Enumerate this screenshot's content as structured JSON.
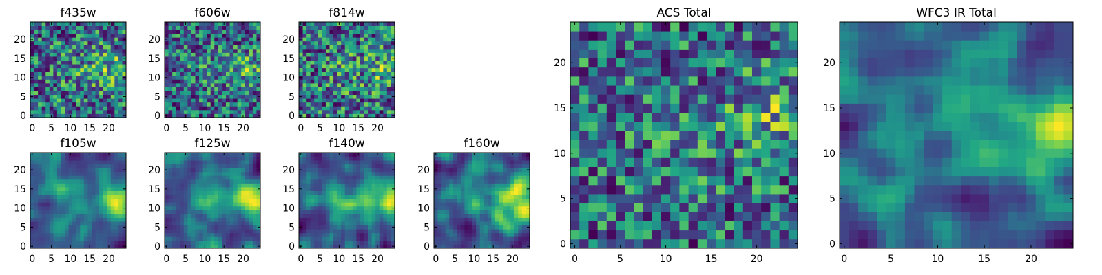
{
  "figure": {
    "background": "#ffffff"
  },
  "chart_data": [
    {
      "id": "f435w",
      "type": "heatmap",
      "title": "f435w",
      "seed": 11,
      "style": "noisy",
      "blob": [
        20,
        13
      ],
      "xlim": [
        -0.5,
        24.5
      ],
      "ylim": [
        -0.5,
        24.5
      ],
      "xticks": [
        0,
        5,
        10,
        15,
        20
      ],
      "xtick_labels": [
        "0",
        "5",
        "10",
        "15",
        "20"
      ],
      "yticks": [
        0,
        5,
        10,
        15,
        20
      ],
      "ytick_labels": [
        "0",
        "5",
        "10",
        "15",
        "20"
      ]
    },
    {
      "id": "f606w",
      "type": "heatmap",
      "title": "f606w",
      "seed": 23,
      "style": "noisy",
      "blob": [
        22,
        12
      ],
      "xlim": [
        -0.5,
        24.5
      ],
      "ylim": [
        -0.5,
        24.5
      ],
      "xticks": [
        0,
        5,
        10,
        15,
        20
      ],
      "xtick_labels": [
        "0",
        "5",
        "10",
        "15",
        "20"
      ],
      "yticks": [
        0,
        5,
        10,
        15,
        20
      ],
      "ytick_labels": [
        "0",
        "5",
        "10",
        "15",
        "20"
      ]
    },
    {
      "id": "f814w",
      "type": "heatmap",
      "title": "f814w",
      "seed": 37,
      "style": "noisy",
      "blob": [
        23,
        12
      ],
      "xlim": [
        -0.5,
        24.5
      ],
      "ylim": [
        -0.5,
        24.5
      ],
      "xticks": [
        0,
        5,
        10,
        15,
        20
      ],
      "xtick_labels": [
        "0",
        "5",
        "10",
        "15",
        "20"
      ],
      "yticks": [
        0,
        5,
        10,
        15,
        20
      ],
      "ytick_labels": [
        "0",
        "5",
        "10",
        "15",
        "20"
      ]
    },
    {
      "id": "f105w",
      "type": "heatmap",
      "title": "f105w",
      "seed": 41,
      "style": "smooth",
      "blob": [
        22,
        12
      ],
      "xlim": [
        -0.5,
        24.5
      ],
      "ylim": [
        -0.5,
        24.5
      ],
      "xticks": [
        0,
        5,
        10,
        15,
        20
      ],
      "xtick_labels": [
        "0",
        "5",
        "10",
        "15",
        "20"
      ],
      "yticks": [
        0,
        5,
        10,
        15,
        20
      ],
      "ytick_labels": [
        "0",
        "5",
        "10",
        "15",
        "20"
      ]
    },
    {
      "id": "f125w",
      "type": "heatmap",
      "title": "f125w",
      "seed": 53,
      "style": "smooth",
      "blob": [
        22,
        12
      ],
      "xlim": [
        -0.5,
        24.5
      ],
      "ylim": [
        -0.5,
        24.5
      ],
      "xticks": [
        0,
        5,
        10,
        15,
        20
      ],
      "xtick_labels": [
        "0",
        "5",
        "10",
        "15",
        "20"
      ],
      "yticks": [
        0,
        5,
        10,
        15,
        20
      ],
      "ytick_labels": [
        "0",
        "5",
        "10",
        "15",
        "20"
      ]
    },
    {
      "id": "f140w",
      "type": "heatmap",
      "title": "f140w",
      "seed": 67,
      "style": "smooth",
      "blob": [
        22,
        12
      ],
      "xlim": [
        -0.5,
        24.5
      ],
      "ylim": [
        -0.5,
        24.5
      ],
      "xticks": [
        0,
        5,
        10,
        15,
        20
      ],
      "xtick_labels": [
        "0",
        "5",
        "10",
        "15",
        "20"
      ],
      "yticks": [
        0,
        5,
        10,
        15,
        20
      ],
      "ytick_labels": [
        "0",
        "5",
        "10",
        "15",
        "20"
      ]
    },
    {
      "id": "f160w",
      "type": "heatmap",
      "title": "f160w",
      "seed": 79,
      "style": "smooth",
      "blob": [
        23,
        12
      ],
      "xlim": [
        -0.5,
        24.5
      ],
      "ylim": [
        -0.5,
        24.5
      ],
      "xticks": [
        0,
        5,
        10,
        15,
        20
      ],
      "xtick_labels": [
        "0",
        "5",
        "10",
        "15",
        "20"
      ],
      "yticks": [
        0,
        5,
        10,
        15,
        20
      ],
      "ytick_labels": [
        "0",
        "5",
        "10",
        "15",
        "20"
      ]
    },
    {
      "id": "acs_total",
      "type": "heatmap",
      "title": "ACS Total",
      "seed": 97,
      "style": "noisy",
      "blob": [
        22,
        14
      ],
      "xlim": [
        -0.5,
        24.5
      ],
      "ylim": [
        -0.5,
        24.5
      ],
      "xticks": [
        0,
        5,
        10,
        15,
        20
      ],
      "xtick_labels": [
        "0",
        "5",
        "10",
        "15",
        "20"
      ],
      "yticks": [
        0,
        5,
        10,
        15,
        20
      ],
      "ytick_labels": [
        "0",
        "5",
        "10",
        "15",
        "20"
      ]
    },
    {
      "id": "wfc3_total",
      "type": "heatmap",
      "title": "WFC3 IR Total",
      "seed": 131,
      "style": "smooth",
      "blob": [
        23,
        12
      ],
      "xlim": [
        -0.5,
        24.5
      ],
      "ylim": [
        -0.5,
        24.5
      ],
      "xticks": [
        0,
        5,
        10,
        15,
        20
      ],
      "xtick_labels": [
        "0",
        "5",
        "10",
        "15",
        "20"
      ],
      "yticks": [
        0,
        5,
        10,
        15,
        20
      ],
      "ytick_labels": [
        "0",
        "5",
        "10",
        "15",
        "20"
      ]
    }
  ]
}
